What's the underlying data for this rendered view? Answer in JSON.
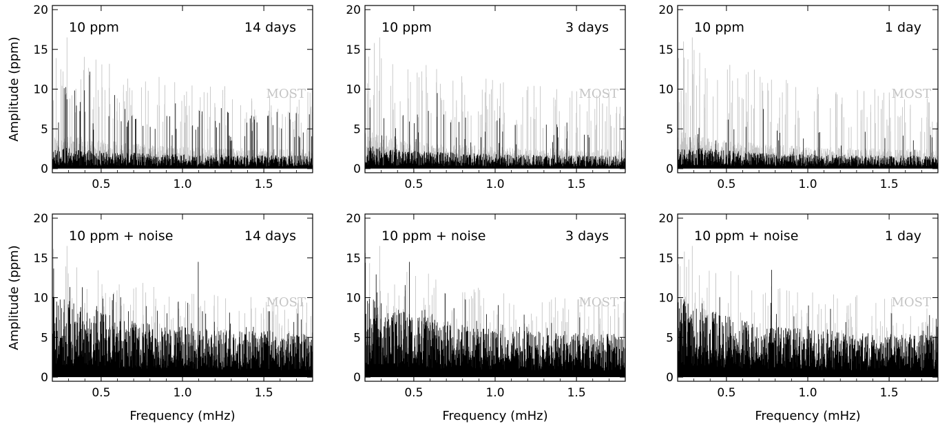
{
  "figure": {
    "ylabel": "Amplitude (ppm)",
    "xlabel": "Frequency (mHz)",
    "reference_label": "MOST",
    "colors": {
      "reference": "#c4c4c4",
      "simulated": "#000000",
      "axes": "#000000"
    }
  },
  "chart_data": [
    {
      "type": "line",
      "row": 0,
      "col": 0,
      "left_label": "10 ppm",
      "right_label": "14 days",
      "xlim": [
        0.2,
        1.8
      ],
      "ylim": [
        0,
        20
      ],
      "xticks": [
        0.5,
        1.0,
        1.5
      ],
      "xtick_labels": [
        "0.5",
        "1.0",
        "1.5"
      ],
      "yticks": [
        0,
        5,
        10,
        15,
        20
      ],
      "ytick_labels": [
        "0",
        "5",
        "10",
        "15",
        "20"
      ],
      "grid": false,
      "series": [
        {
          "name": "MOST",
          "color": "#c4c4c4",
          "noise_level": 2.4,
          "decay": 0.45,
          "spike_count": 120,
          "peak": 16.5
        },
        {
          "color": "#000000",
          "noise_level": 1.6,
          "decay": 0.35,
          "spike_count": 70,
          "peak": 12.2
        }
      ]
    },
    {
      "type": "line",
      "row": 0,
      "col": 1,
      "left_label": "10 ppm",
      "right_label": "3 days",
      "xlim": [
        0.2,
        1.8
      ],
      "ylim": [
        0,
        20
      ],
      "xticks": [
        0.5,
        1.0,
        1.5
      ],
      "xtick_labels": [
        "0.5",
        "1.0",
        "1.5"
      ],
      "yticks": [
        0,
        5,
        10,
        15,
        20
      ],
      "ytick_labels": [
        "0",
        "5",
        "10",
        "15",
        "20"
      ],
      "grid": false,
      "series": [
        {
          "name": "MOST",
          "color": "#c4c4c4",
          "noise_level": 2.4,
          "decay": 0.45,
          "spike_count": 120,
          "peak": 16.5
        },
        {
          "color": "#000000",
          "noise_level": 1.6,
          "decay": 0.4,
          "spike_count": 40,
          "peak": 9.5
        }
      ]
    },
    {
      "type": "line",
      "row": 0,
      "col": 2,
      "left_label": "10 ppm",
      "right_label": "1 day",
      "xlim": [
        0.2,
        1.8
      ],
      "ylim": [
        0,
        20
      ],
      "xticks": [
        0.5,
        1.0,
        1.5
      ],
      "xtick_labels": [
        "0.5",
        "1.0",
        "1.5"
      ],
      "yticks": [
        0,
        5,
        10,
        15,
        20
      ],
      "ytick_labels": [
        "0",
        "5",
        "10",
        "15",
        "20"
      ],
      "grid": false,
      "series": [
        {
          "name": "MOST",
          "color": "#c4c4c4",
          "noise_level": 2.4,
          "decay": 0.45,
          "spike_count": 120,
          "peak": 16.5
        },
        {
          "color": "#000000",
          "noise_level": 1.6,
          "decay": 0.4,
          "spike_count": 25,
          "peak": 7.5
        }
      ]
    },
    {
      "type": "line",
      "row": 1,
      "col": 0,
      "left_label": "10 ppm + noise",
      "right_label": "14 days",
      "xlim": [
        0.2,
        1.8
      ],
      "ylim": [
        0,
        20
      ],
      "xticks": [
        0.5,
        1.0,
        1.5
      ],
      "xtick_labels": [
        "0.5",
        "1.0",
        "1.5"
      ],
      "yticks": [
        0,
        5,
        10,
        15,
        20
      ],
      "ytick_labels": [
        "0",
        "5",
        "10",
        "15",
        "20"
      ],
      "grid": false,
      "series": [
        {
          "name": "MOST",
          "color": "#c4c4c4",
          "noise_level": 2.4,
          "decay": 0.45,
          "spike_count": 120,
          "peak": 16.5
        },
        {
          "color": "#000000",
          "noise_level": 5.5,
          "decay": 0.45,
          "spike_count": 60,
          "peak": 14.5
        }
      ]
    },
    {
      "type": "line",
      "row": 1,
      "col": 1,
      "left_label": "10 ppm + noise",
      "right_label": "3 days",
      "xlim": [
        0.2,
        1.8
      ],
      "ylim": [
        0,
        20
      ],
      "xticks": [
        0.5,
        1.0,
        1.5
      ],
      "xtick_labels": [
        "0.5",
        "1.0",
        "1.5"
      ],
      "yticks": [
        0,
        5,
        10,
        15,
        20
      ],
      "ytick_labels": [
        "0",
        "5",
        "10",
        "15",
        "20"
      ],
      "grid": false,
      "series": [
        {
          "name": "MOST",
          "color": "#c4c4c4",
          "noise_level": 2.4,
          "decay": 0.45,
          "spike_count": 120,
          "peak": 16.5
        },
        {
          "color": "#000000",
          "noise_level": 5.3,
          "decay": 0.45,
          "spike_count": 40,
          "peak": 14.5
        }
      ]
    },
    {
      "type": "line",
      "row": 1,
      "col": 2,
      "left_label": "10 ppm + noise",
      "right_label": "1 day",
      "xlim": [
        0.2,
        1.8
      ],
      "ylim": [
        0,
        20
      ],
      "xticks": [
        0.5,
        1.0,
        1.5
      ],
      "xtick_labels": [
        "0.5",
        "1.0",
        "1.5"
      ],
      "yticks": [
        0,
        5,
        10,
        15,
        20
      ],
      "ytick_labels": [
        "0",
        "5",
        "10",
        "15",
        "20"
      ],
      "grid": false,
      "series": [
        {
          "name": "MOST",
          "color": "#c4c4c4",
          "noise_level": 2.4,
          "decay": 0.45,
          "spike_count": 120,
          "peak": 16.5
        },
        {
          "color": "#000000",
          "noise_level": 5.2,
          "decay": 0.45,
          "spike_count": 30,
          "peak": 13.5
        }
      ]
    }
  ]
}
